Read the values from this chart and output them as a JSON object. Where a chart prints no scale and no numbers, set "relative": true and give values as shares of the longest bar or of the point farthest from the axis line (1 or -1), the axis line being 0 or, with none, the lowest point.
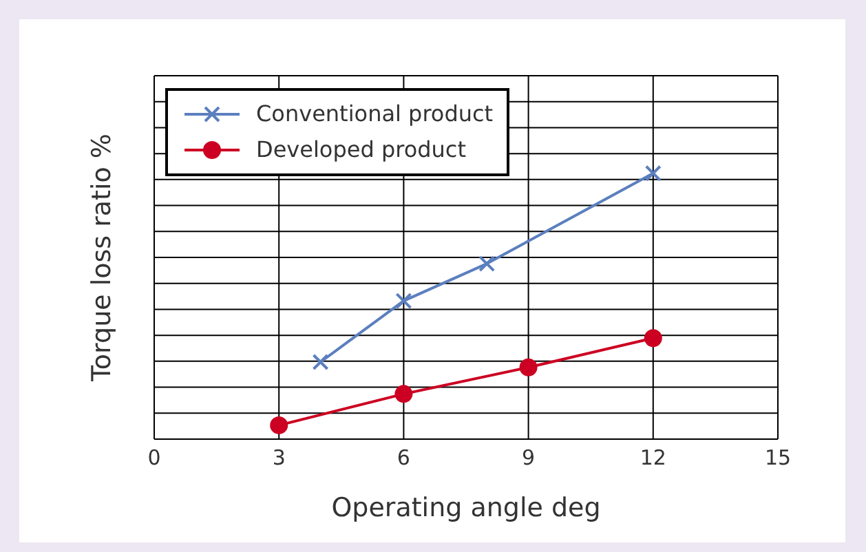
{
  "chart_data": {
    "type": "line",
    "xlabel": "Operating angle deg",
    "ylabel": "Torque loss ratio %",
    "relative": true,
    "xlim": [
      0,
      15
    ],
    "xticks": [
      0,
      3,
      6,
      9,
      12,
      15
    ],
    "grid": true,
    "legend": "top left",
    "series": [
      {
        "name": "Conventional product",
        "color": "#5b7fbf",
        "marker": "cross",
        "x": [
          4,
          6,
          8,
          12
        ],
        "values": [
          0.29,
          0.52,
          0.66,
          1
        ]
      },
      {
        "name": "Developed product",
        "color": "#cc0022",
        "marker": "circle",
        "x": [
          3,
          6,
          9,
          12
        ],
        "values": [
          0.052,
          0.17,
          0.27,
          0.38
        ]
      }
    ]
  }
}
